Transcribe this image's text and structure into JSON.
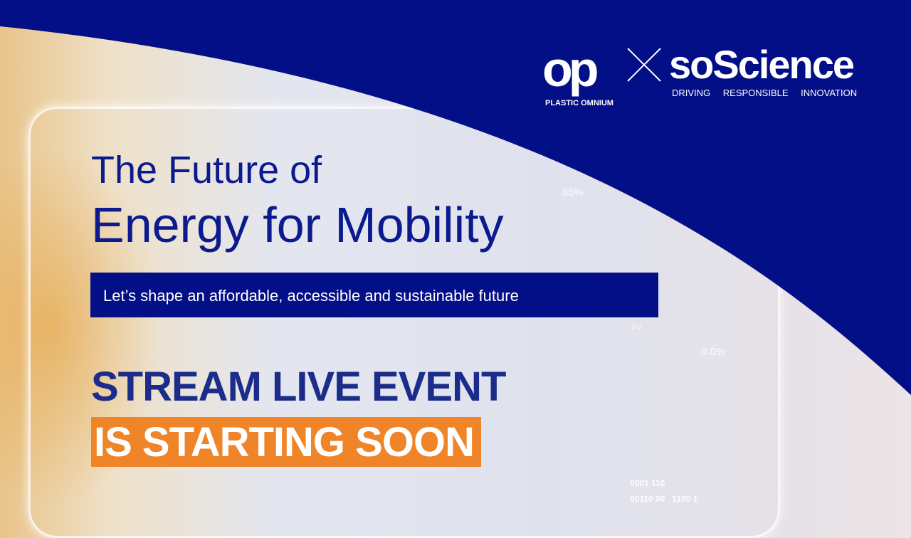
{
  "colors": {
    "brand_blue": "#030f86",
    "headline_blue": "#0b1a8f",
    "accent_orange": "#ef8428"
  },
  "logos": {
    "plastic_omnium_mark": "op",
    "plastic_omnium_name": "PLASTIC OMNIUM",
    "soscience": "soScience",
    "soscience_tagline": "DRIVING RESPONSIBLE INNOVATION"
  },
  "headline": {
    "line1": "The Future of",
    "line2": "Energy for Mobility"
  },
  "subtitle": "Let’s shape an affordable, accessible and sustainable future",
  "cta": {
    "line1": "STREAM LIVE EVENT",
    "line2": "IS STARTING SOON"
  },
  "dashboard": {
    "gauge_percent": "85%",
    "battery_percent": "0.0%",
    "ev_label": "EV",
    "binary_1": "0001 110",
    "binary_2": "00110 00   1100 1"
  }
}
